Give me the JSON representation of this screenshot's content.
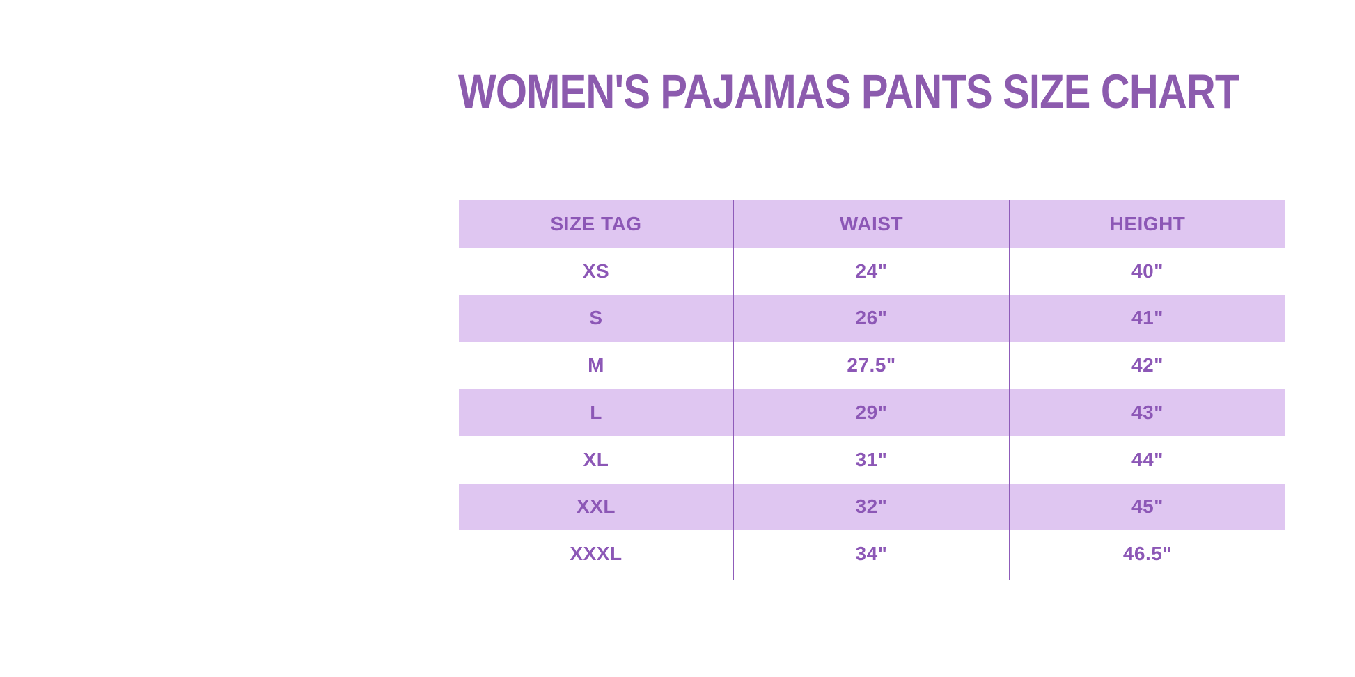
{
  "title": {
    "text": "WOMEN'S PAJAMAS PANTS SIZE CHART"
  },
  "colors": {
    "background": "#ffffff",
    "title_color": "#8c5bae",
    "row_shade": "#dfc6f1",
    "table_text": "#8c57b6",
    "divider": "#8f5cba"
  },
  "table": {
    "columns": [
      "SIZE TAG",
      "WAIST",
      "HEIGHT"
    ],
    "rows": [
      [
        "XS",
        "24\"",
        "40\""
      ],
      [
        "S",
        "26\"",
        "41\""
      ],
      [
        "M",
        "27.5\"",
        "42\""
      ],
      [
        "L",
        "29\"",
        "43\""
      ],
      [
        "XL",
        "31\"",
        "44\""
      ],
      [
        "XXL",
        "32\"",
        "45\""
      ],
      [
        "XXXL",
        "34\"",
        "46.5\""
      ]
    ]
  },
  "chart_data": {
    "type": "table",
    "title": "WOMEN'S PAJAMAS PANTS SIZE CHART",
    "columns": [
      "SIZE TAG",
      "WAIST",
      "HEIGHT"
    ],
    "rows": [
      {
        "size_tag": "XS",
        "waist": "24\"",
        "height": "40\""
      },
      {
        "size_tag": "S",
        "waist": "26\"",
        "height": "41\""
      },
      {
        "size_tag": "M",
        "waist": "27.5\"",
        "height": "42\""
      },
      {
        "size_tag": "L",
        "waist": "29\"",
        "height": "43\""
      },
      {
        "size_tag": "XL",
        "waist": "31\"",
        "height": "44\""
      },
      {
        "size_tag": "XXL",
        "waist": "32\"",
        "height": "45\""
      },
      {
        "size_tag": "XXXL",
        "waist": "34\"",
        "height": "46.5\""
      }
    ],
    "layout_hints": {
      "header_shaded": true,
      "alternating_shaded_rows": [
        "header",
        "S",
        "L",
        "XXL"
      ],
      "column_dividers": true,
      "row_dividers": false
    }
  }
}
